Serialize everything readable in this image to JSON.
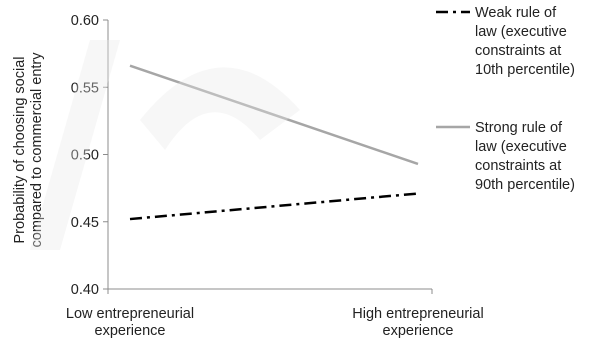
{
  "chart_data": {
    "type": "line",
    "categories": [
      "Low entrepreneurial experience",
      "High entrepreneurial experience"
    ],
    "category_lines": [
      [
        "Low entrepreneurial",
        "experience"
      ],
      [
        "High entrepreneurial",
        "experience"
      ]
    ],
    "ylabel_lines": [
      "Probability of choosing social",
      "compared to commercial entry"
    ],
    "ylim": [
      0.4,
      0.6
    ],
    "yticks": [
      "0.40",
      "0.45",
      "0.50",
      "0.55",
      "0.60"
    ],
    "ytick_values": [
      0.4,
      0.45,
      0.5,
      0.55,
      0.6
    ],
    "grid": false,
    "legend_position": "right",
    "series": [
      {
        "name_lines": [
          "Weak rule of",
          "law (executive",
          "constraints at",
          "10th percentile)"
        ],
        "values": [
          0.452,
          0.471
        ],
        "color": "#000000",
        "style": "dash-dot"
      },
      {
        "name_lines": [
          "Strong rule of",
          "law  (executive",
          "constraints at",
          "90th percentile)"
        ],
        "values": [
          0.566,
          0.493
        ],
        "color": "#a6a6a6",
        "style": "solid"
      }
    ]
  }
}
